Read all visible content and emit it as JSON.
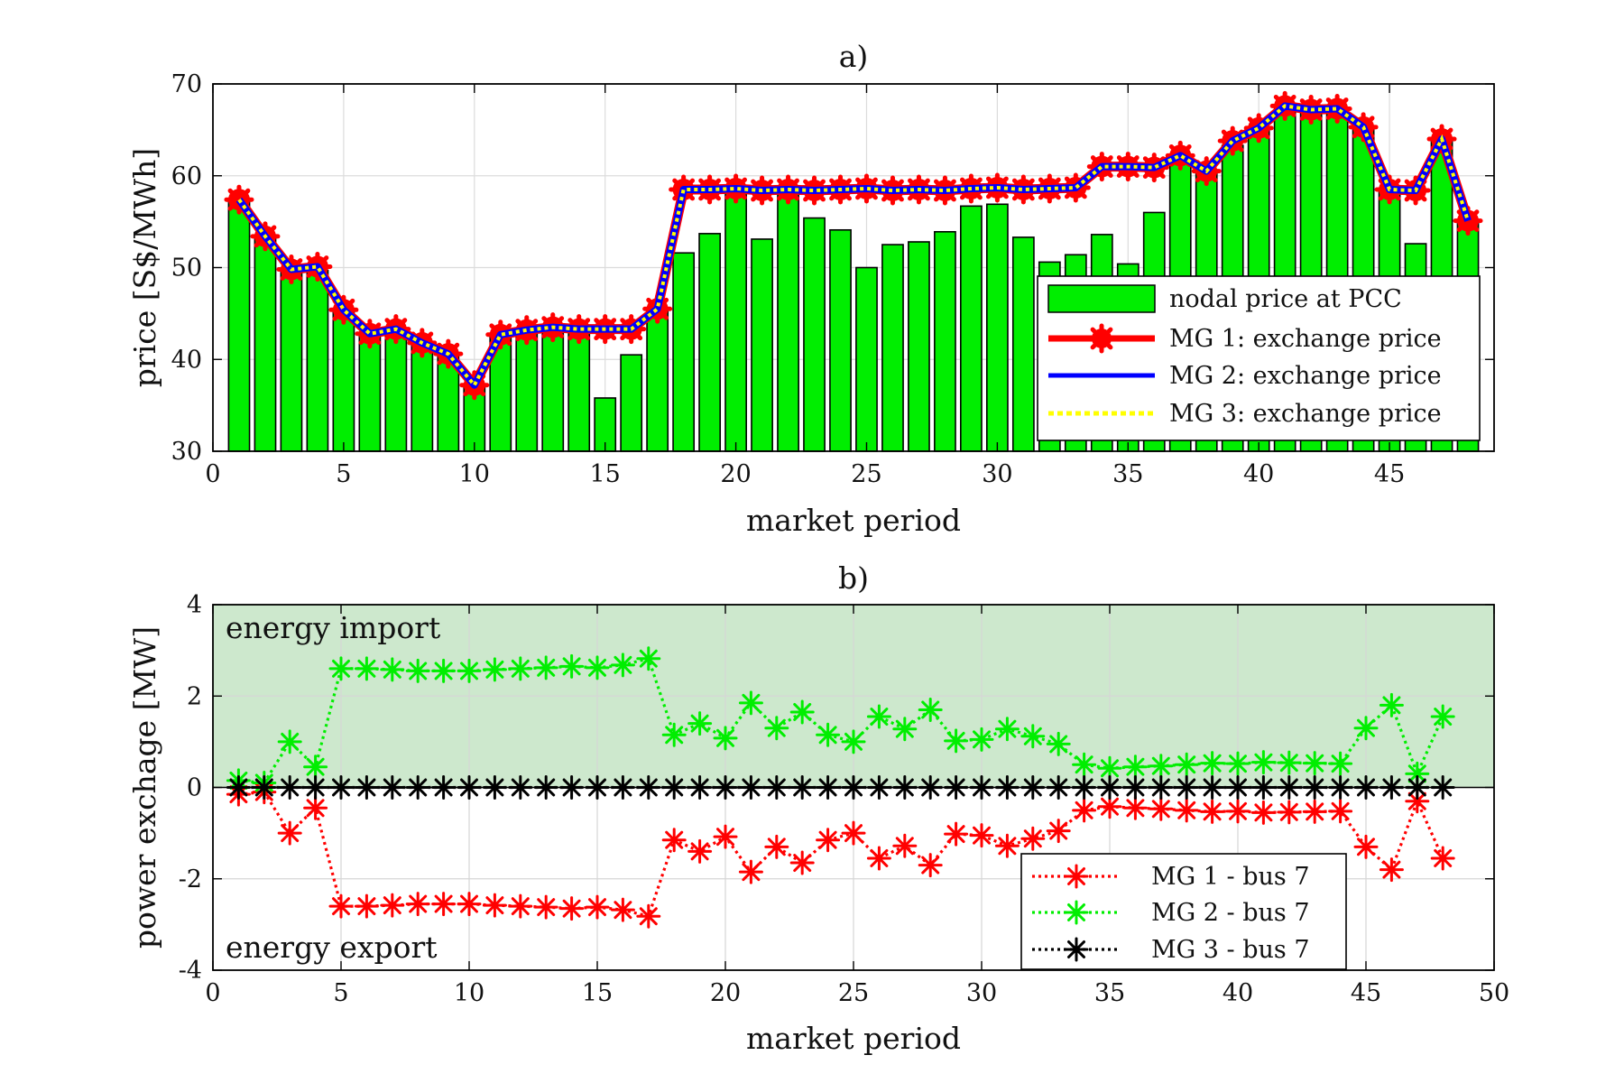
{
  "chart_data": [
    {
      "type": "bar",
      "title": "a)",
      "xlabel": "market period",
      "ylabel": "price [S$/MWh]",
      "xlim": [
        0,
        49
      ],
      "ylim": [
        30,
        70
      ],
      "xticks": [
        0,
        5,
        10,
        15,
        20,
        25,
        30,
        35,
        40,
        45
      ],
      "yticks": [
        30,
        40,
        50,
        60,
        70
      ],
      "grid": true,
      "legend_position": "bottom-right",
      "x": [
        1,
        2,
        3,
        4,
        5,
        6,
        7,
        8,
        9,
        10,
        11,
        12,
        13,
        14,
        15,
        16,
        17,
        18,
        19,
        20,
        21,
        22,
        23,
        24,
        25,
        26,
        27,
        28,
        29,
        30,
        31,
        32,
        33,
        34,
        35,
        36,
        37,
        38,
        39,
        40,
        41,
        42,
        43,
        44,
        45,
        46,
        47,
        48
      ],
      "bars": {
        "name": "nodal price at PCC",
        "color": "#00ee00",
        "values": [
          57.2,
          53.2,
          49.6,
          49.7,
          45.2,
          42.7,
          43.0,
          41.6,
          40.4,
          37.0,
          42.5,
          43.0,
          43.3,
          43.0,
          35.8,
          40.5,
          45.5,
          51.6,
          53.7,
          58.1,
          53.1,
          58.1,
          55.4,
          54.1,
          50.0,
          52.5,
          52.8,
          53.9,
          56.7,
          56.9,
          53.3,
          50.6,
          51.4,
          53.6,
          50.4,
          56.0,
          61.6,
          60.2,
          63.3,
          64.9,
          67.4,
          67.0,
          67.1,
          65.1,
          58.3,
          52.6,
          63.8,
          54.8
        ]
      },
      "series": [
        {
          "name": "MG 1: exchange price",
          "color": "#ff0000",
          "style": "solid-thick-with-star-markers",
          "values": [
            57.4,
            53.4,
            49.8,
            50.1,
            45.4,
            42.8,
            43.3,
            41.8,
            40.6,
            37.2,
            42.7,
            43.2,
            43.5,
            43.3,
            43.3,
            43.3,
            45.5,
            58.5,
            58.5,
            58.6,
            58.4,
            58.5,
            58.4,
            58.5,
            58.6,
            58.4,
            58.5,
            58.4,
            58.6,
            58.7,
            58.5,
            58.6,
            58.7,
            61.0,
            61.0,
            60.9,
            62.2,
            60.5,
            63.8,
            65.2,
            67.6,
            67.2,
            67.3,
            65.3,
            58.5,
            58.4,
            64.0,
            55.1
          ]
        },
        {
          "name": "MG 2: exchange price",
          "color": "#0000ff",
          "style": "solid",
          "values": [
            57.4,
            53.4,
            49.8,
            50.1,
            45.4,
            42.8,
            43.3,
            41.8,
            40.6,
            37.2,
            42.7,
            43.2,
            43.5,
            43.3,
            43.3,
            43.3,
            45.5,
            58.5,
            58.5,
            58.6,
            58.4,
            58.5,
            58.4,
            58.5,
            58.6,
            58.4,
            58.5,
            58.4,
            58.6,
            58.7,
            58.5,
            58.6,
            58.7,
            61.0,
            61.0,
            60.9,
            62.2,
            60.5,
            63.8,
            65.2,
            67.6,
            67.2,
            67.3,
            65.3,
            58.5,
            58.4,
            64.0,
            55.1
          ]
        },
        {
          "name": "MG 3: exchange price",
          "color": "#ffff00",
          "style": "dotted",
          "values": [
            57.4,
            53.4,
            49.8,
            50.1,
            45.4,
            42.8,
            43.3,
            41.8,
            40.6,
            37.2,
            42.7,
            43.2,
            43.5,
            43.3,
            43.3,
            43.3,
            45.5,
            58.5,
            58.5,
            58.6,
            58.4,
            58.5,
            58.4,
            58.5,
            58.6,
            58.4,
            58.5,
            58.4,
            58.6,
            58.7,
            58.5,
            58.6,
            58.7,
            61.0,
            61.0,
            60.9,
            62.2,
            60.5,
            63.8,
            65.2,
            67.6,
            67.2,
            67.3,
            65.3,
            58.5,
            58.4,
            64.0,
            55.1
          ]
        }
      ]
    },
    {
      "type": "line",
      "title": "b)",
      "xlabel": "market period",
      "ylabel": "power exchage [MW]",
      "xlim": [
        0,
        50
      ],
      "ylim": [
        -4,
        4
      ],
      "xticks": [
        0,
        5,
        10,
        15,
        20,
        25,
        30,
        35,
        40,
        45,
        50
      ],
      "yticks": [
        -4,
        -2,
        0,
        2,
        4
      ],
      "grid": true,
      "legend_position": "bottom-right",
      "shaded_region": {
        "from": 0,
        "to": 4,
        "color": "#cde8cd"
      },
      "annotations": [
        "energy import",
        "energy export"
      ],
      "x": [
        1,
        2,
        3,
        4,
        5,
        6,
        7,
        8,
        9,
        10,
        11,
        12,
        13,
        14,
        15,
        16,
        17,
        18,
        19,
        20,
        21,
        22,
        23,
        24,
        25,
        26,
        27,
        28,
        29,
        30,
        31,
        32,
        33,
        34,
        35,
        36,
        37,
        38,
        39,
        40,
        41,
        42,
        43,
        44,
        45,
        46,
        47,
        48
      ],
      "series": [
        {
          "name": "MG 1 - bus 7",
          "color": "#ff0000",
          "style": "dotted-with-star-markers",
          "values": [
            -0.15,
            -0.1,
            -1.0,
            -0.45,
            -2.6,
            -2.6,
            -2.58,
            -2.55,
            -2.55,
            -2.55,
            -2.58,
            -2.6,
            -2.62,
            -2.65,
            -2.62,
            -2.68,
            -2.82,
            -1.15,
            -1.4,
            -1.08,
            -1.85,
            -1.3,
            -1.65,
            -1.15,
            -1.0,
            -1.55,
            -1.28,
            -1.7,
            -1.02,
            -1.05,
            -1.28,
            -1.12,
            -0.95,
            -0.5,
            -0.42,
            -0.45,
            -0.47,
            -0.5,
            -0.53,
            -0.52,
            -0.55,
            -0.54,
            -0.53,
            -0.52,
            -1.3,
            -1.8,
            -0.3,
            -1.55
          ]
        },
        {
          "name": "MG 2 - bus 7",
          "color": "#00ee00",
          "style": "dotted-with-star-markers",
          "values": [
            0.15,
            0.1,
            1.0,
            0.45,
            2.6,
            2.6,
            2.58,
            2.55,
            2.55,
            2.55,
            2.58,
            2.6,
            2.62,
            2.65,
            2.62,
            2.68,
            2.82,
            1.15,
            1.4,
            1.08,
            1.85,
            1.3,
            1.65,
            1.15,
            1.0,
            1.55,
            1.28,
            1.7,
            1.02,
            1.05,
            1.28,
            1.12,
            0.95,
            0.5,
            0.42,
            0.45,
            0.47,
            0.5,
            0.53,
            0.52,
            0.55,
            0.54,
            0.53,
            0.52,
            1.3,
            1.8,
            0.3,
            1.55
          ]
        },
        {
          "name": "MG 3 - bus 7",
          "color": "#000000",
          "style": "dotted-with-star-markers",
          "values": [
            0,
            0,
            0,
            0,
            0,
            0,
            0,
            0,
            0,
            0,
            0,
            0,
            0,
            0,
            0,
            0,
            0,
            0,
            0,
            0,
            0,
            0,
            0,
            0,
            0,
            0,
            0,
            0,
            0,
            0,
            0,
            0,
            0,
            0,
            0,
            0,
            0,
            0,
            0,
            0,
            0,
            0,
            0,
            0,
            0,
            0,
            0,
            0
          ]
        }
      ]
    }
  ]
}
